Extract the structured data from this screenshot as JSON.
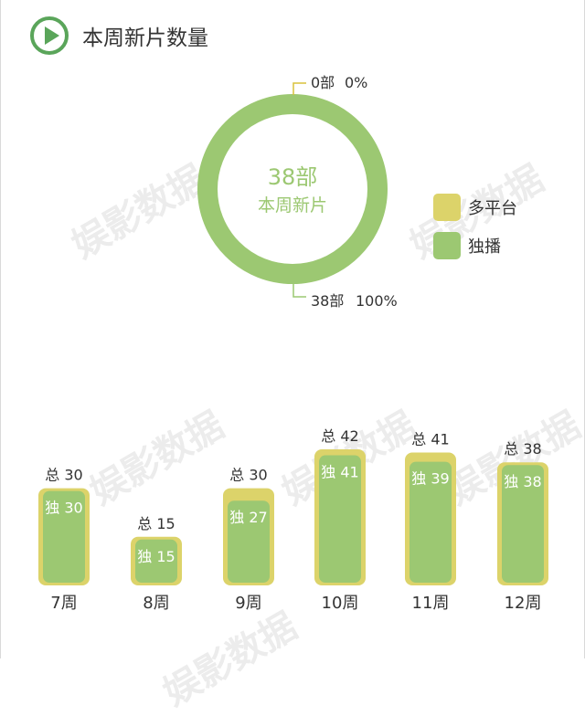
{
  "title": "本周新片数量",
  "watermark_text": "娱影数据",
  "colors": {
    "green": "#9cc872",
    "yellow": "#dcd36a",
    "play_icon": "#5aa55a",
    "leader_line": "#d8c23c"
  },
  "chart_data": [
    {
      "type": "pie",
      "center_value": "38部",
      "center_label": "本周新片",
      "slices": [
        {
          "name": "多平台",
          "value": 0,
          "count_label": "0部",
          "percent_label": "0%",
          "color": "#dcd36a"
        },
        {
          "name": "独播",
          "value": 38,
          "count_label": "38部",
          "percent_label": "100%",
          "color": "#9cc872"
        }
      ],
      "legend": [
        "多平台",
        "独播"
      ],
      "legend_position": "right"
    },
    {
      "type": "bar",
      "categories": [
        "7周",
        "8周",
        "9周",
        "10周",
        "11周",
        "12周"
      ],
      "series": [
        {
          "name": "总",
          "values": [
            30,
            15,
            30,
            42,
            41,
            38
          ]
        },
        {
          "name": "独",
          "values": [
            30,
            15,
            27,
            41,
            39,
            38
          ]
        }
      ],
      "total_labels": [
        "总 30",
        "总 15",
        "总 30",
        "总 42",
        "总 41",
        "总 38"
      ],
      "exclusive_labels": [
        "独 30",
        "独 15",
        "独 27",
        "独 41",
        "独 39",
        "独 38"
      ],
      "ylim": [
        0,
        42
      ]
    }
  ]
}
